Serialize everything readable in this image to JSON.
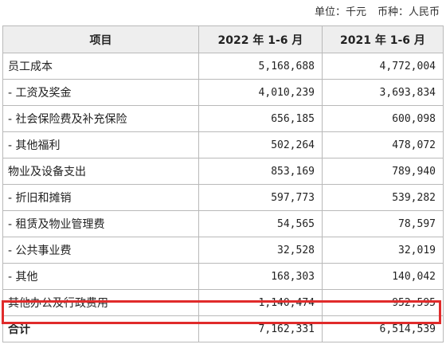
{
  "unit_line": {
    "unit": "单位：千元",
    "currency": "币种：人民币"
  },
  "table": {
    "headers": [
      "项目",
      "2022 年 1-6 月",
      "2021 年 1-6 月"
    ],
    "rows": [
      {
        "item": "员工成本",
        "y2022": "5,168,688",
        "y2021": "4,772,004"
      },
      {
        "item": "- 工资及奖金",
        "y2022": "4,010,239",
        "y2021": "3,693,834"
      },
      {
        "item": "- 社会保险费及补充保险",
        "y2022": "656,185",
        "y2021": "600,098"
      },
      {
        "item": "- 其他福利",
        "y2022": "502,264",
        "y2021": "478,072"
      },
      {
        "item": "物业及设备支出",
        "y2022": "853,169",
        "y2021": "789,940"
      },
      {
        "item": "- 折旧和摊销",
        "y2022": "597,773",
        "y2021": "539,282"
      },
      {
        "item": "- 租赁及物业管理费",
        "y2022": "54,565",
        "y2021": "78,597"
      },
      {
        "item": "- 公共事业费",
        "y2022": "32,528",
        "y2021": "32,019"
      },
      {
        "item": "- 其他",
        "y2022": "168,303",
        "y2021": "140,042"
      },
      {
        "item": "其他办公及行政费用",
        "y2022": "1,140,474",
        "y2021": "952,595"
      },
      {
        "item": "合计",
        "y2022": "7,162,331",
        "y2021": "6,514,539"
      }
    ]
  },
  "highlight_color": "#e02b2b",
  "highlighted_row": "其他办公及行政费用"
}
